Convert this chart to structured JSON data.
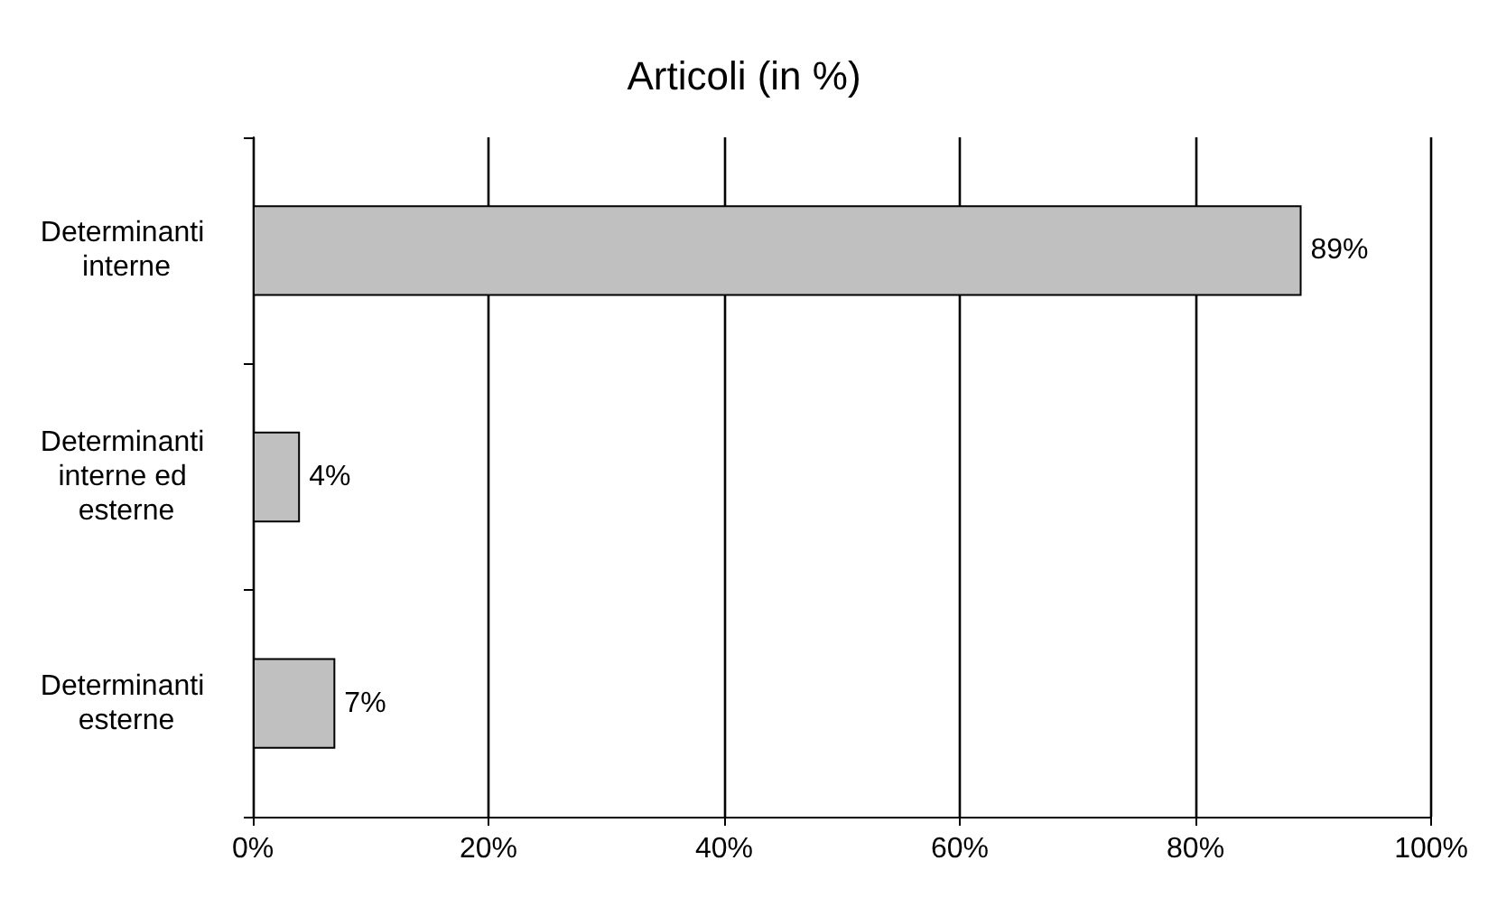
{
  "chart_data": {
    "type": "bar",
    "orientation": "horizontal",
    "title": "Articoli (in %)",
    "categories": [
      "Determinanti interne",
      "Determinanti interne ed esterne",
      "Determinanti esterne"
    ],
    "values": [
      89,
      4,
      7
    ],
    "value_labels": [
      "89%",
      "4%",
      "7%"
    ],
    "color": "#c0c0c0",
    "xlim": [
      0,
      100
    ],
    "xticks": [
      {
        "value": 0,
        "label": "0%"
      },
      {
        "value": 20,
        "label": "20%"
      },
      {
        "value": 40,
        "label": "40%"
      },
      {
        "value": 60,
        "label": "60%"
      },
      {
        "value": 80,
        "label": "80%"
      },
      {
        "value": 100,
        "label": "100%"
      }
    ],
    "grid": "x"
  }
}
